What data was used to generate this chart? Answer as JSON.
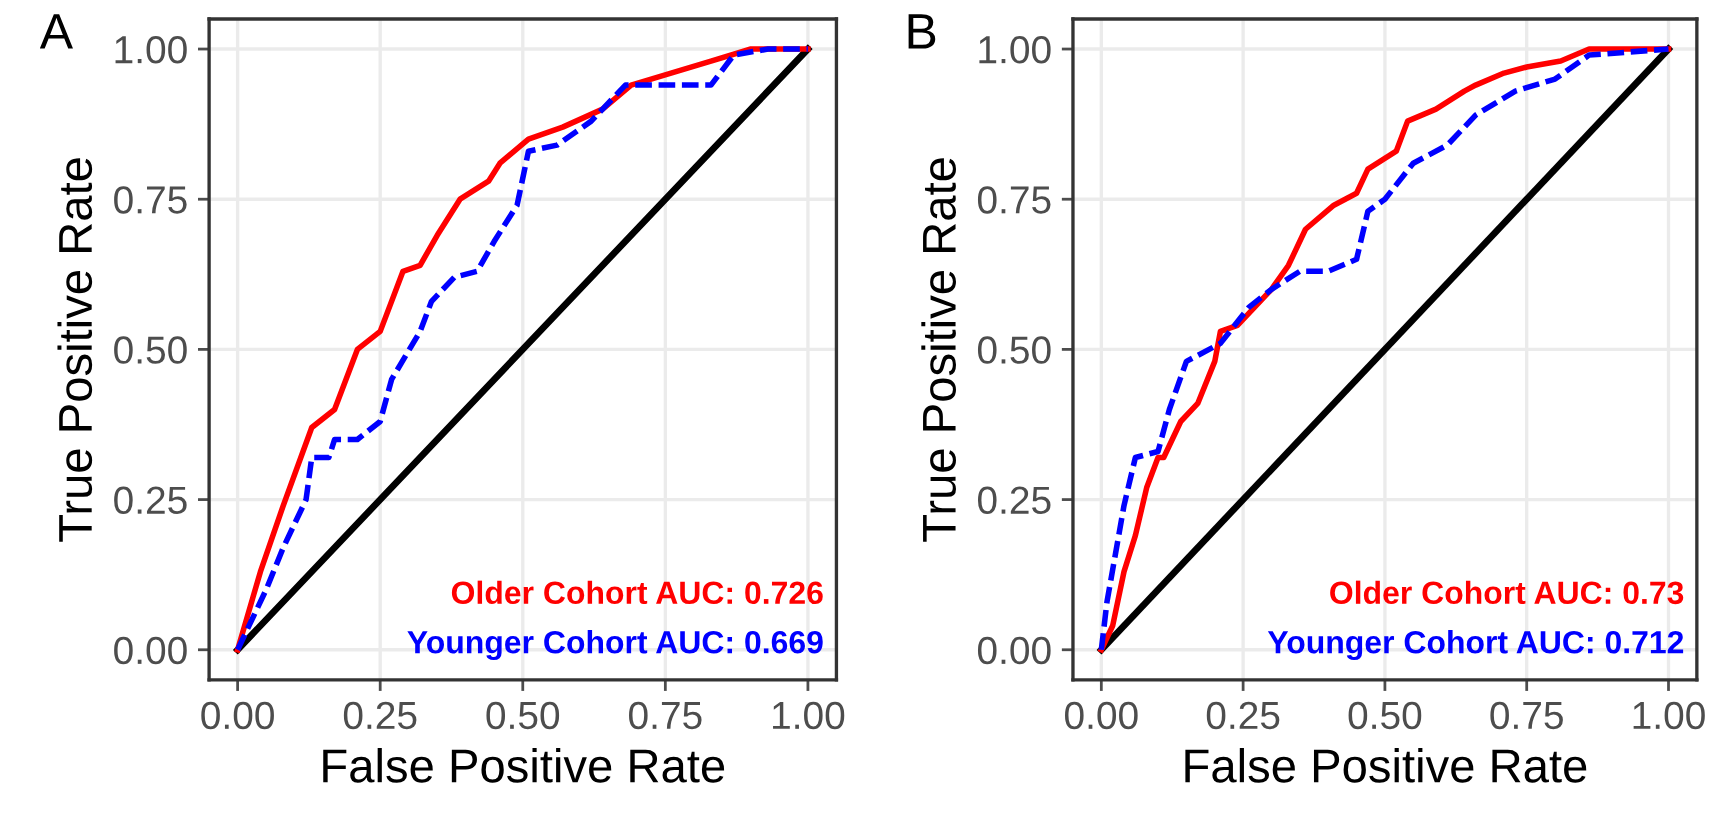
{
  "chart_data": [
    {
      "type": "line",
      "title": "A",
      "xlabel": "False Positive Rate",
      "ylabel": "True Positive Rate",
      "xlim": [
        -0.05,
        1.05
      ],
      "ylim": [
        -0.05,
        1.05
      ],
      "xticks": [
        {
          "value": 0,
          "label": "0.00"
        },
        {
          "value": 0.25,
          "label": "0.25"
        },
        {
          "value": 0.5,
          "label": "0.50"
        },
        {
          "value": 0.75,
          "label": "0.75"
        },
        {
          "value": 1,
          "label": "1.00"
        }
      ],
      "yticks": [
        {
          "value": 0,
          "label": "0.00"
        },
        {
          "value": 0.25,
          "label": "0.25"
        },
        {
          "value": 0.5,
          "label": "0.50"
        },
        {
          "value": 0.75,
          "label": "0.75"
        },
        {
          "value": 1,
          "label": "1.00"
        }
      ],
      "grid": true,
      "legend": "bottom right",
      "series": [
        {
          "name": "Older Cohort AUC: 0.726",
          "color": "#ff0000",
          "line_style": "solid",
          "x": [
            0,
            0.04,
            0.08,
            0.13,
            0.17,
            0.21,
            0.25,
            0.29,
            0.32,
            0.35,
            0.39,
            0.44,
            0.46,
            0.51,
            0.57,
            0.64,
            0.69,
            0.76,
            0.83,
            0.9,
            1
          ],
          "values": [
            0,
            0.13,
            0.24,
            0.37,
            0.4,
            0.5,
            0.53,
            0.63,
            0.64,
            0.69,
            0.75,
            0.78,
            0.81,
            0.85,
            0.87,
            0.9,
            0.94,
            0.96,
            0.98,
            1,
            1
          ]
        },
        {
          "name": "Younger Cohort AUC: 0.669",
          "color": "#0000ff",
          "line_style": "dashed",
          "x": [
            0,
            0.05,
            0.08,
            0.12,
            0.13,
            0.16,
            0.17,
            0.21,
            0.25,
            0.27,
            0.32,
            0.34,
            0.38,
            0.42,
            0.45,
            0.49,
            0.51,
            0.56,
            0.62,
            0.68,
            0.76,
            0.83,
            0.87,
            0.93,
            1
          ],
          "values": [
            0,
            0.1,
            0.17,
            0.25,
            0.32,
            0.32,
            0.35,
            0.35,
            0.38,
            0.45,
            0.53,
            0.58,
            0.62,
            0.63,
            0.68,
            0.74,
            0.83,
            0.84,
            0.88,
            0.94,
            0.94,
            0.94,
            0.99,
            1,
            1
          ]
        },
        {
          "color": "#000000",
          "line_style": "solid",
          "x": [
            0,
            1
          ],
          "values": [
            0,
            1
          ]
        }
      ]
    },
    {
      "type": "line",
      "title": "B",
      "xlabel": "False Positive Rate",
      "ylabel": "True Positive Rate",
      "xlim": [
        -0.05,
        1.05
      ],
      "ylim": [
        -0.05,
        1.05
      ],
      "xticks": [
        {
          "value": 0,
          "label": "0.00"
        },
        {
          "value": 0.25,
          "label": "0.25"
        },
        {
          "value": 0.5,
          "label": "0.50"
        },
        {
          "value": 0.75,
          "label": "0.75"
        },
        {
          "value": 1,
          "label": "1.00"
        }
      ],
      "yticks": [
        {
          "value": 0,
          "label": "0.00"
        },
        {
          "value": 0.25,
          "label": "0.25"
        },
        {
          "value": 0.5,
          "label": "0.50"
        },
        {
          "value": 0.75,
          "label": "0.75"
        },
        {
          "value": 1,
          "label": "1.00"
        }
      ],
      "grid": true,
      "legend": "bottom right",
      "series": [
        {
          "name": "Older Cohort AUC: 0.73",
          "color": "#ff0000",
          "line_style": "solid",
          "x": [
            0,
            0.02,
            0.04,
            0.06,
            0.08,
            0.1,
            0.11,
            0.14,
            0.17,
            0.2,
            0.21,
            0.24,
            0.27,
            0.3,
            0.33,
            0.36,
            0.41,
            0.45,
            0.47,
            0.52,
            0.54,
            0.59,
            0.64,
            0.66,
            0.71,
            0.75,
            0.81,
            0.86,
            1
          ],
          "values": [
            0,
            0.04,
            0.13,
            0.19,
            0.27,
            0.32,
            0.32,
            0.38,
            0.41,
            0.48,
            0.53,
            0.54,
            0.57,
            0.6,
            0.64,
            0.7,
            0.74,
            0.76,
            0.8,
            0.83,
            0.88,
            0.9,
            0.93,
            0.94,
            0.96,
            0.97,
            0.98,
            1,
            1
          ]
        },
        {
          "name": "Younger Cohort AUC: 0.712",
          "color": "#0000ff",
          "line_style": "dashed",
          "x": [
            0,
            0.01,
            0.04,
            0.06,
            0.1,
            0.12,
            0.15,
            0.21,
            0.26,
            0.3,
            0.35,
            0.4,
            0.45,
            0.47,
            0.5,
            0.55,
            0.61,
            0.66,
            0.73,
            0.8,
            0.86,
            1
          ],
          "values": [
            0,
            0.08,
            0.24,
            0.32,
            0.33,
            0.4,
            0.48,
            0.51,
            0.57,
            0.6,
            0.63,
            0.63,
            0.65,
            0.73,
            0.75,
            0.81,
            0.84,
            0.89,
            0.93,
            0.95,
            0.99,
            1
          ]
        },
        {
          "color": "#000000",
          "line_style": "solid",
          "x": [
            0,
            1
          ],
          "values": [
            0,
            1
          ]
        }
      ]
    }
  ]
}
